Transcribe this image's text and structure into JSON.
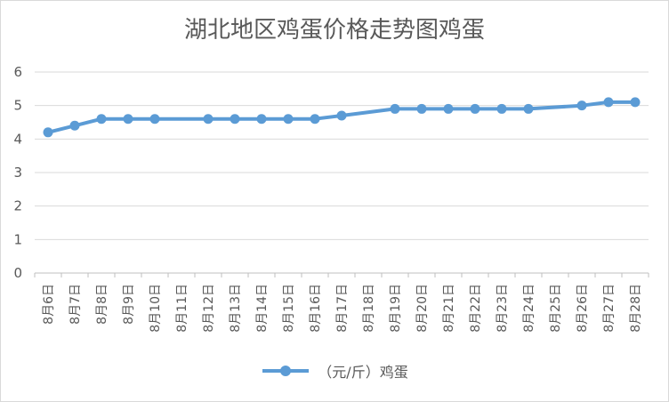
{
  "chart_data": {
    "type": "line",
    "title": "湖北地区鸡蛋价格走势图鸡蛋",
    "categories": [
      "8月6日",
      "8月7日",
      "8月8日",
      "8月9日",
      "8月10日",
      "8月11日",
      "8月12日",
      "8月13日",
      "8月14日",
      "8月15日",
      "8月16日",
      "8月17日",
      "8月18日",
      "8月19日",
      "8月20日",
      "8月21日",
      "8月22日",
      "8月23日",
      "8月24日",
      "8月25日",
      "8月26日",
      "8月27日",
      "8月28日"
    ],
    "series": [
      {
        "name": "（元/斤）鸡蛋",
        "values": [
          4.2,
          4.4,
          4.6,
          4.6,
          4.6,
          null,
          4.6,
          4.6,
          4.6,
          4.6,
          4.6,
          4.7,
          null,
          4.9,
          4.9,
          4.9,
          4.9,
          4.9,
          4.9,
          null,
          5.0,
          5.1,
          5.1
        ]
      }
    ],
    "ylim": [
      0,
      6
    ],
    "yticks": [
      "0",
      "1",
      "2",
      "3",
      "4",
      "5",
      "6"
    ],
    "grid": true,
    "legend": "bottom",
    "colors": {
      "series": "#5b9bd5",
      "grid": "#d9d9d9",
      "text": "#595959"
    }
  }
}
